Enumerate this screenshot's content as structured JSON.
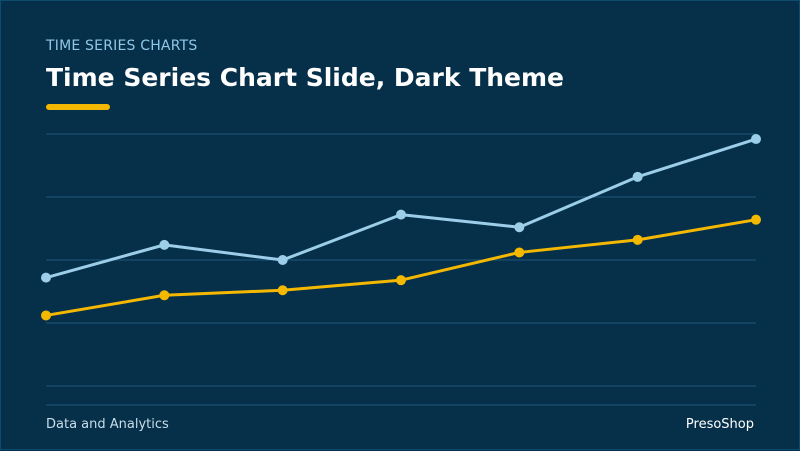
{
  "slide": {
    "eyebrow": "TIME SERIES CHARTS",
    "title": "Time Series Chart Slide, Dark Theme",
    "footer_left": "Data and Analytics",
    "footer_right": "PresoShop"
  },
  "colors": {
    "background": "#06304a",
    "gridline": "#1d5677",
    "accent": "#f5b800",
    "series_light": "#9ccde9",
    "series_gold": "#f5b800"
  },
  "chart_data": {
    "type": "line",
    "title": "",
    "xlabel": "",
    "ylabel": "",
    "x": [
      1,
      2,
      3,
      4,
      5,
      6,
      7
    ],
    "ylim": [
      0,
      100
    ],
    "grid": true,
    "legend": "none",
    "series": [
      {
        "color": "#9ccde9",
        "values": [
          43,
          56,
          50,
          68,
          63,
          83,
          98
        ]
      },
      {
        "color": "#f5b800",
        "values": [
          28,
          36,
          38,
          42,
          53,
          58,
          66
        ]
      }
    ]
  }
}
